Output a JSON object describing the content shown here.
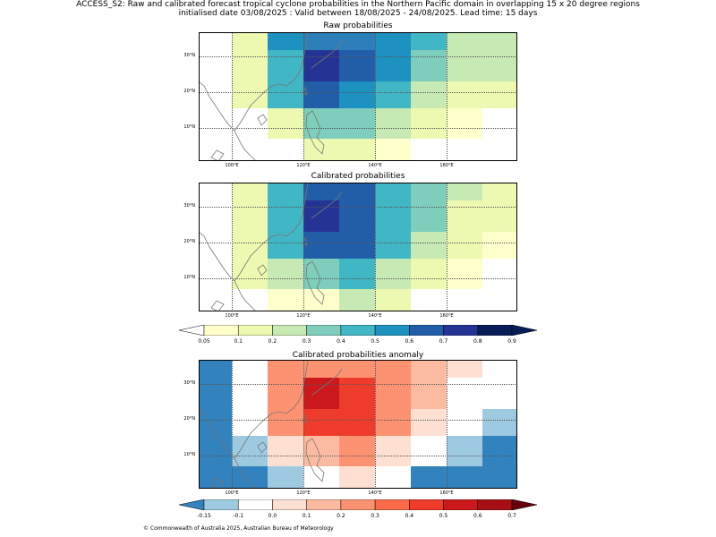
{
  "header": {
    "line1": "ACCESS_S2: Raw and calibrated forecast tropical cyclone probabilities in the Northern Pacific domain in overlapping 15 x 20 degree regions",
    "line2": "initialised date 03/08/2025 :  Valid between 18/08/2025 - 24/08/2025. Lead time: 15 days"
  },
  "axes": {
    "lon_ticks": [
      "100°E",
      "120°E",
      "140°E",
      "160°E"
    ],
    "lat_ticks": [
      "30°N",
      "20°N",
      "10°N"
    ]
  },
  "panels": [
    {
      "title": "Raw probabilities",
      "grid": [
        [
          "#ffffff",
          "#edf8b1",
          "#1d91c0",
          "#2c7fb8",
          "#2c7fb8",
          "#1d91c0",
          "#41b6c4",
          "#c7e9b4",
          "#c7e9b4"
        ],
        [
          "#ffffff",
          "#edf8b1",
          "#41b6c4",
          "#253494",
          "#225ea8",
          "#1d91c0",
          "#7fcdbb",
          "#c7e9b4",
          "#c7e9b4"
        ],
        [
          "#ffffff",
          "#edf8b1",
          "#41b6c4",
          "#225ea8",
          "#1d91c0",
          "#41b6c4",
          "#c7e9b4",
          "#edf8b1",
          "#edf8b1"
        ],
        [
          "#ffffff",
          "#ffffff",
          "#edf8b1",
          "#7fcdbb",
          "#7fcdbb",
          "#c7e9b4",
          "#edf8b1",
          "#ffffcc",
          "#ffffff"
        ],
        [
          "#ffffff",
          "#ffffff",
          "#ffffff",
          "#edf8b1",
          "#edf8b1",
          "#ffffcc",
          "#ffffff",
          "#ffffff",
          "#ffffff"
        ]
      ]
    },
    {
      "title": "Calibrated probabilities",
      "grid": [
        [
          "#ffffff",
          "#edf8b1",
          "#41b6c4",
          "#225ea8",
          "#225ea8",
          "#41b6c4",
          "#7fcdbb",
          "#c7e9b4",
          "#edf8b1"
        ],
        [
          "#ffffff",
          "#edf8b1",
          "#41b6c4",
          "#253494",
          "#225ea8",
          "#41b6c4",
          "#7fcdbb",
          "#edf8b1",
          "#edf8b1"
        ],
        [
          "#ffffff",
          "#edf8b1",
          "#41b6c4",
          "#225ea8",
          "#225ea8",
          "#41b6c4",
          "#c7e9b4",
          "#edf8b1",
          "#ffffcc"
        ],
        [
          "#ffffff",
          "#edf8b1",
          "#c7e9b4",
          "#7fcdbb",
          "#41b6c4",
          "#c7e9b4",
          "#edf8b1",
          "#ffffcc",
          "#ffffff"
        ],
        [
          "#ffffff",
          "#ffffff",
          "#ffffcc",
          "#ffffcc",
          "#c7e9b4",
          "#edf8b1",
          "#ffffff",
          "#ffffff",
          "#ffffff"
        ]
      ]
    },
    {
      "title": "Calibrated probabilities anomaly",
      "grid": [
        [
          "#3182bd",
          "#ffffff",
          "#fc9272",
          "#fc9272",
          "#fc9272",
          "#fc9272",
          "#fcbba1",
          "#fee0d2",
          "#ffffff"
        ],
        [
          "#3182bd",
          "#ffffff",
          "#fc9272",
          "#cb181d",
          "#ef3b2c",
          "#fc9272",
          "#fcbba1",
          "#ffffff",
          "#ffffff"
        ],
        [
          "#3182bd",
          "#ffffff",
          "#fc9272",
          "#ef3b2c",
          "#ef3b2c",
          "#fc9272",
          "#fee0d2",
          "#ffffff",
          "#9ecae1"
        ],
        [
          "#3182bd",
          "#9ecae1",
          "#fee0d2",
          "#fcbba1",
          "#fc9272",
          "#fee0d2",
          "#ffffff",
          "#9ecae1",
          "#3182bd"
        ],
        [
          "#3182bd",
          "#3182bd",
          "#9ecae1",
          "#ffffff",
          "#fee0d2",
          "#ffffff",
          "#3182bd",
          "#3182bd",
          "#3182bd"
        ]
      ]
    }
  ],
  "colorbars": [
    {
      "labels": [
        "0.05",
        "0.1",
        "0.2",
        "0.3",
        "0.4",
        "0.5",
        "0.6",
        "0.7",
        "0.8",
        "0.9"
      ],
      "colors": [
        "#ffffcc",
        "#edf8b1",
        "#c7e9b4",
        "#7fcdbb",
        "#41b6c4",
        "#1d91c0",
        "#225ea8",
        "#253494",
        "#081d58"
      ],
      "under": "#ffffff",
      "over": "#081d58"
    },
    {
      "labels": [
        "-0.15",
        "-0.1",
        "0.0",
        "0.1",
        "0.2",
        "0.3",
        "0.4",
        "0.5",
        "0.6",
        "0.7"
      ],
      "colors": [
        "#9ecae1",
        "#ffffff",
        "#fee0d2",
        "#fcbba1",
        "#fc9272",
        "#fb6a4a",
        "#ef3b2c",
        "#cb181d",
        "#a50f15"
      ],
      "under": "#3182bd",
      "over": "#67000d"
    }
  ],
  "footer": {
    "copyright": "© Commonwealth of Australia 2025, Australian Bureau of Meteorology"
  }
}
